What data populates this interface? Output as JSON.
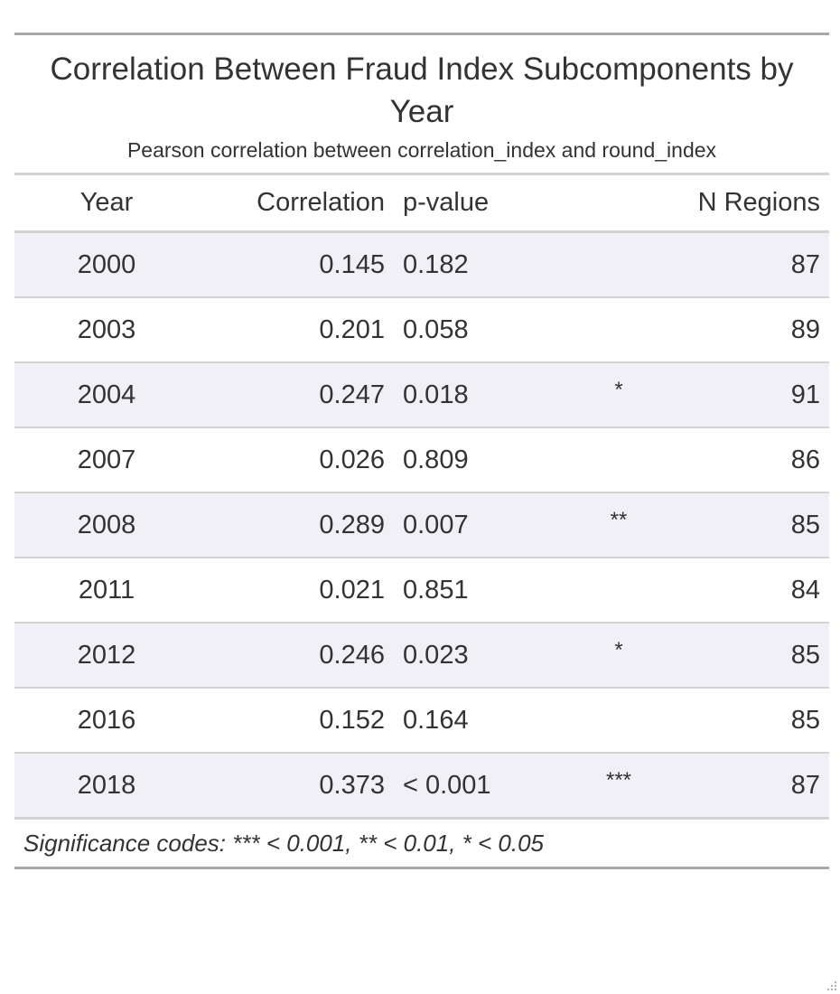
{
  "title": "Correlation Between Fraud Index Subcomponents by Year",
  "subtitle": "Pearson correlation between correlation_index and round_index",
  "columns": {
    "year": "Year",
    "correlation": "Correlation",
    "pvalue": "p-value",
    "significance": "",
    "n_regions": "N Regions"
  },
  "rows": [
    {
      "year": "2000",
      "correlation": "0.145",
      "pvalue": "0.182",
      "sig": "",
      "n": "87"
    },
    {
      "year": "2003",
      "correlation": "0.201",
      "pvalue": "0.058",
      "sig": "",
      "n": "89"
    },
    {
      "year": "2004",
      "correlation": "0.247",
      "pvalue": "0.018",
      "sig": "*",
      "n": "91"
    },
    {
      "year": "2007",
      "correlation": "0.026",
      "pvalue": "0.809",
      "sig": "",
      "n": "86"
    },
    {
      "year": "2008",
      "correlation": "0.289",
      "pvalue": "0.007",
      "sig": "**",
      "n": "85"
    },
    {
      "year": "2011",
      "correlation": "0.021",
      "pvalue": "0.851",
      "sig": "",
      "n": "84"
    },
    {
      "year": "2012",
      "correlation": "0.246",
      "pvalue": "0.023",
      "sig": "*",
      "n": "85"
    },
    {
      "year": "2016",
      "correlation": "0.152",
      "pvalue": "0.164",
      "sig": "",
      "n": "85"
    },
    {
      "year": "2018",
      "correlation": "0.373",
      "pvalue": "< 0.001",
      "sig": "***",
      "n": "87"
    }
  ],
  "footnote": "Significance codes: *** < 0.001, ** < 0.01, * < 0.05",
  "colors": {
    "stripe": "#f1f0f6",
    "rule_dark": "#a8a8a8",
    "rule_light": "#d3d3d3",
    "text": "#333333"
  },
  "icons": {
    "resize": "resize-grip-icon"
  }
}
